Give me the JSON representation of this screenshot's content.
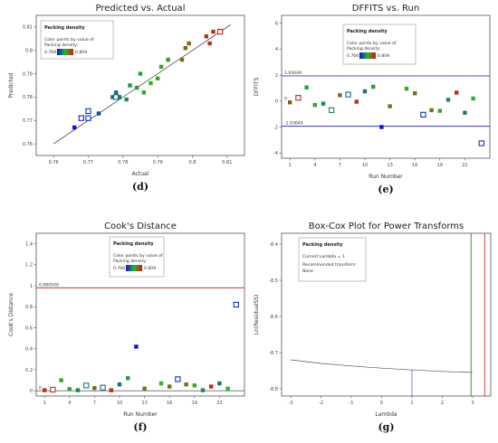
{
  "colors": {
    "low": "#1010e0",
    "mid": "#22bb22",
    "high": "#e01010",
    "limit_line": "#3333cc",
    "cook_line": "#cc1111",
    "lambda_best": "#22aa22",
    "lambda_ci": "#cc1111"
  },
  "chart_data": [
    {
      "type": "scatter",
      "panel_label": "(d)",
      "title": "Predicted vs. Actual",
      "xlabel": "Actual",
      "ylabel": "Predicted",
      "xlim": [
        0.755,
        0.815
      ],
      "ylim": [
        0.755,
        0.815
      ],
      "x_ticks": [
        "0.76",
        "0.77",
        "0.78",
        "0.79",
        "0.8",
        "0.81"
      ],
      "y_ticks": [
        "0.76",
        "0.77",
        "0.78",
        "0.79",
        "0.8",
        "0.81"
      ],
      "legend": {
        "title": "Packing density",
        "line1": "Color points by value of",
        "line2": "Packing density:",
        "low": "0.766",
        "high": "0.809"
      },
      "reference_line": [
        [
          0.76,
          0.76
        ],
        [
          0.811,
          0.811
        ]
      ],
      "points": [
        {
          "x": 0.766,
          "y": 0.767,
          "c": 0.766
        },
        {
          "x": 0.768,
          "y": 0.771,
          "c": 0.768,
          "sq": true
        },
        {
          "x": 0.77,
          "y": 0.774,
          "c": 0.77,
          "sq": true
        },
        {
          "x": 0.77,
          "y": 0.771,
          "c": 0.77,
          "sq": true
        },
        {
          "x": 0.773,
          "y": 0.773,
          "c": 0.773
        },
        {
          "x": 0.777,
          "y": 0.78,
          "c": 0.777
        },
        {
          "x": 0.778,
          "y": 0.78,
          "c": 0.778,
          "sq": true
        },
        {
          "x": 0.778,
          "y": 0.782,
          "c": 0.778
        },
        {
          "x": 0.779,
          "y": 0.78,
          "c": 0.779
        },
        {
          "x": 0.781,
          "y": 0.779,
          "c": 0.781
        },
        {
          "x": 0.782,
          "y": 0.785,
          "c": 0.782
        },
        {
          "x": 0.784,
          "y": 0.784,
          "c": 0.784
        },
        {
          "x": 0.785,
          "y": 0.79,
          "c": 0.785
        },
        {
          "x": 0.786,
          "y": 0.782,
          "c": 0.786
        },
        {
          "x": 0.788,
          "y": 0.786,
          "c": 0.788
        },
        {
          "x": 0.79,
          "y": 0.788,
          "c": 0.79
        },
        {
          "x": 0.791,
          "y": 0.793,
          "c": 0.791
        },
        {
          "x": 0.793,
          "y": 0.796,
          "c": 0.793
        },
        {
          "x": 0.797,
          "y": 0.796,
          "c": 0.797
        },
        {
          "x": 0.798,
          "y": 0.801,
          "c": 0.798
        },
        {
          "x": 0.799,
          "y": 0.803,
          "c": 0.799
        },
        {
          "x": 0.804,
          "y": 0.806,
          "c": 0.804
        },
        {
          "x": 0.805,
          "y": 0.803,
          "c": 0.805
        },
        {
          "x": 0.806,
          "y": 0.808,
          "c": 0.806
        },
        {
          "x": 0.808,
          "y": 0.808,
          "c": 0.809,
          "sq": true
        }
      ]
    },
    {
      "type": "scatter",
      "panel_label": "(e)",
      "title": "DFFITS vs. Run",
      "xlabel": "Run Number",
      "ylabel": "DFFITS",
      "xlim": [
        0,
        25
      ],
      "ylim": [
        -4.4,
        6.6
      ],
      "x_ticks": [
        "1",
        "4",
        "7",
        "10",
        "13",
        "16",
        "19",
        "22"
      ],
      "y_ticks": [
        "-4",
        "-2",
        "0",
        "2",
        "4",
        "6"
      ],
      "limit_labels": [
        "1.93649",
        "-1.93649"
      ],
      "zero_label": "0",
      "limits": [
        1.93649,
        -1.93649
      ],
      "legend": {
        "title": "Packing density",
        "line1": "Color points by value of",
        "line2": "Packing density:",
        "low": "0.766",
        "high": "0.809"
      },
      "points": [
        {
          "x": 1,
          "y": -0.1,
          "c": 0.8
        },
        {
          "x": 2,
          "y": 0.25,
          "c": 0.805,
          "sq": true
        },
        {
          "x": 3,
          "y": 1.05,
          "c": 0.785
        },
        {
          "x": 4,
          "y": -0.3,
          "c": 0.79
        },
        {
          "x": 5,
          "y": -0.2,
          "c": 0.781
        },
        {
          "x": 6,
          "y": -0.7,
          "c": 0.78,
          "sq": true
        },
        {
          "x": 7,
          "y": 0.45,
          "c": 0.797
        },
        {
          "x": 8,
          "y": 0.5,
          "c": 0.778,
          "sq": true
        },
        {
          "x": 9,
          "y": -0.05,
          "c": 0.805
        },
        {
          "x": 10,
          "y": 0.75,
          "c": 0.778
        },
        {
          "x": 11,
          "y": 1.1,
          "c": 0.784
        },
        {
          "x": 12,
          "y": -2.0,
          "c": 0.766
        },
        {
          "x": 13,
          "y": -0.4,
          "c": 0.797
        },
        {
          "x": 15,
          "y": 0.95,
          "c": 0.788
        },
        {
          "x": 16,
          "y": 0.6,
          "c": 0.797
        },
        {
          "x": 17,
          "y": -1.05,
          "c": 0.77,
          "sq": true
        },
        {
          "x": 18,
          "y": -0.7,
          "c": 0.797
        },
        {
          "x": 19,
          "y": -0.75,
          "c": 0.79
        },
        {
          "x": 20,
          "y": 0.1,
          "c": 0.781
        },
        {
          "x": 21,
          "y": 0.65,
          "c": 0.806
        },
        {
          "x": 22,
          "y": -0.9,
          "c": 0.779
        },
        {
          "x": 23,
          "y": 0.2,
          "c": 0.788
        },
        {
          "x": 24,
          "y": -3.25,
          "c": 0.77,
          "sq": true
        }
      ]
    },
    {
      "type": "scatter",
      "panel_label": "(f)",
      "title": "Cook's Distance",
      "xlabel": "Run Number",
      "ylabel": "Cook's Distance",
      "xlim": [
        0,
        25
      ],
      "ylim": [
        -0.05,
        1.5
      ],
      "x_ticks": [
        "1",
        "4",
        "7",
        "10",
        "13",
        "16",
        "19",
        "22"
      ],
      "y_ticks": [
        "0",
        "0.2",
        "0.4",
        "0.6",
        "0.8",
        "1",
        "1.2",
        "1.4"
      ],
      "limit_label": "0.980509",
      "zero_label": "0",
      "limit": 0.980509,
      "legend": {
        "title": "Packing density",
        "line1": "Color points by value of",
        "line2": "Packing density:",
        "low": "0.766",
        "high": "0.809"
      },
      "points": [
        {
          "x": 1,
          "y": 0.005,
          "c": 0.805
        },
        {
          "x": 2,
          "y": 0.01,
          "c": 0.805,
          "sq": true
        },
        {
          "x": 3,
          "y": 0.1,
          "c": 0.79
        },
        {
          "x": 4,
          "y": 0.015,
          "c": 0.785
        },
        {
          "x": 5,
          "y": 0.005,
          "c": 0.781
        },
        {
          "x": 6,
          "y": 0.05,
          "c": 0.78,
          "sq": true
        },
        {
          "x": 7,
          "y": 0.025,
          "c": 0.797
        },
        {
          "x": 8,
          "y": 0.03,
          "c": 0.778,
          "sq": true
        },
        {
          "x": 9,
          "y": 0.005,
          "c": 0.805
        },
        {
          "x": 10,
          "y": 0.06,
          "c": 0.778
        },
        {
          "x": 11,
          "y": 0.12,
          "c": 0.784
        },
        {
          "x": 12,
          "y": 0.42,
          "c": 0.766
        },
        {
          "x": 13,
          "y": 0.02,
          "c": 0.797
        },
        {
          "x": 15,
          "y": 0.07,
          "c": 0.788
        },
        {
          "x": 16,
          "y": 0.04,
          "c": 0.797
        },
        {
          "x": 17,
          "y": 0.11,
          "c": 0.77,
          "sq": true
        },
        {
          "x": 18,
          "y": 0.06,
          "c": 0.797
        },
        {
          "x": 19,
          "y": 0.05,
          "c": 0.79
        },
        {
          "x": 20,
          "y": 0.005,
          "c": 0.781
        },
        {
          "x": 21,
          "y": 0.04,
          "c": 0.806
        },
        {
          "x": 22,
          "y": 0.07,
          "c": 0.779
        },
        {
          "x": 23,
          "y": 0.02,
          "c": 0.788
        },
        {
          "x": 24,
          "y": 0.82,
          "c": 0.77,
          "sq": true
        }
      ]
    },
    {
      "type": "line",
      "panel_label": "(g)",
      "title": "Box-Cox Plot for Power Transforms",
      "xlabel": "Lambda",
      "ylabel": "Ln(ResidualSS)",
      "xlim": [
        -3.3,
        3.6
      ],
      "ylim": [
        -8.82,
        -8.37
      ],
      "x_ticks": [
        "-3",
        "-2",
        "-1",
        "0",
        "1",
        "2",
        "3"
      ],
      "y_ticks": [
        "-8.4",
        "-8.5",
        "-8.6",
        "-8.7",
        "-8.8"
      ],
      "legend": {
        "title": "Packing density",
        "current": "Current Lambda = 1",
        "recommend": "Recommended transform:",
        "rec_value": "None"
      },
      "curve": {
        "x": [
          -3,
          -2,
          -1,
          0,
          1,
          2,
          3
        ],
        "y": [
          -8.72,
          -8.73,
          -8.737,
          -8.743,
          -8.748,
          -8.752,
          -8.755
        ]
      },
      "current_lambda": 1,
      "best_lambda": 2.95,
      "ci_upper": 3.4
    }
  ]
}
